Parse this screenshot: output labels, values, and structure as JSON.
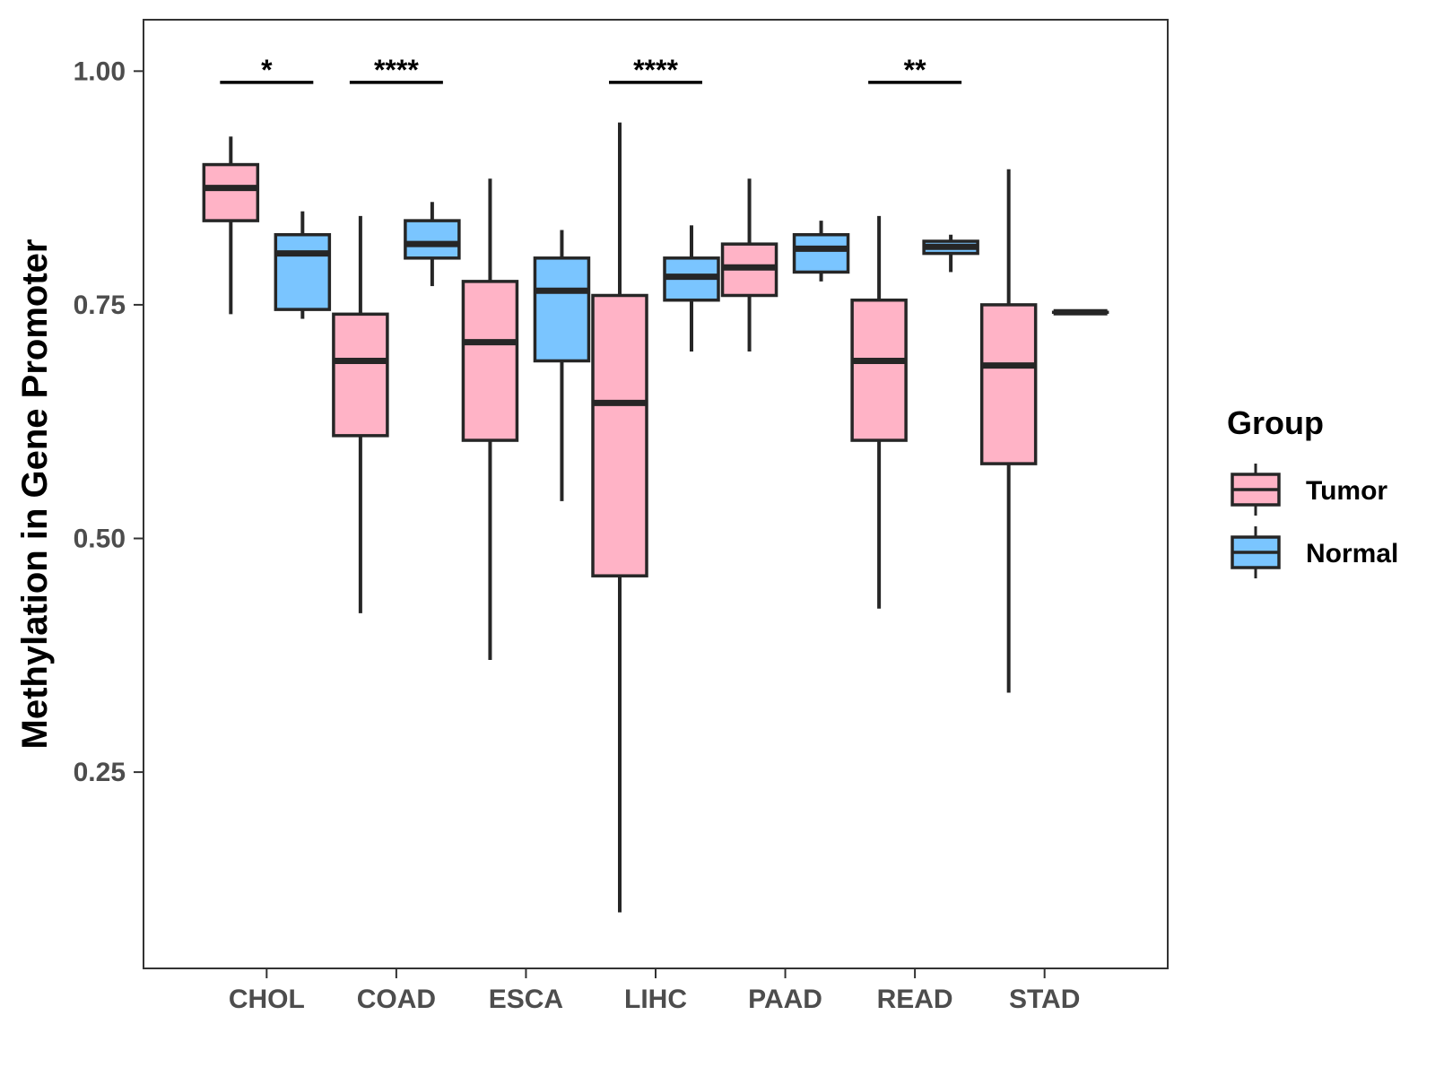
{
  "chart_data": {
    "type": "boxplot",
    "title": "",
    "xlabel": "",
    "ylabel": "Methylation in Gene Promoter",
    "ylim": [
      0.04,
      1.055
    ],
    "yticks": [
      0.25,
      0.5,
      0.75,
      1.0
    ],
    "ytick_labels": [
      "0.25",
      "0.50",
      "0.75",
      "1.00"
    ],
    "grid": false,
    "categories": [
      "CHOL",
      "COAD",
      "ESCA",
      "LIHC",
      "PAAD",
      "READ",
      "STAD"
    ],
    "legend": {
      "title": "Group",
      "placement": "right",
      "entries": [
        {
          "name": "Tumor",
          "color": "#ffb3c6"
        },
        {
          "name": "Normal",
          "color": "#7ac5ff"
        }
      ]
    },
    "series": [
      {
        "name": "Tumor",
        "color": "#ffb3c6",
        "boxes": [
          {
            "category": "CHOL",
            "min": 0.74,
            "q1": 0.84,
            "median": 0.875,
            "q3": 0.9,
            "max": 0.93
          },
          {
            "category": "COAD",
            "min": 0.42,
            "q1": 0.61,
            "median": 0.69,
            "q3": 0.74,
            "max": 0.845
          },
          {
            "category": "ESCA",
            "min": 0.37,
            "q1": 0.605,
            "median": 0.71,
            "q3": 0.775,
            "max": 0.885
          },
          {
            "category": "LIHC",
            "min": 0.1,
            "q1": 0.46,
            "median": 0.645,
            "q3": 0.76,
            "max": 0.945
          },
          {
            "category": "PAAD",
            "min": 0.7,
            "q1": 0.76,
            "median": 0.79,
            "q3": 0.815,
            "max": 0.885
          },
          {
            "category": "READ",
            "min": 0.425,
            "q1": 0.605,
            "median": 0.69,
            "q3": 0.755,
            "max": 0.845
          },
          {
            "category": "STAD",
            "min": 0.335,
            "q1": 0.58,
            "median": 0.685,
            "q3": 0.75,
            "max": 0.895
          }
        ]
      },
      {
        "name": "Normal",
        "color": "#7ac5ff",
        "boxes": [
          {
            "category": "CHOL",
            "min": 0.735,
            "q1": 0.745,
            "median": 0.805,
            "q3": 0.825,
            "max": 0.85
          },
          {
            "category": "COAD",
            "min": 0.77,
            "q1": 0.8,
            "median": 0.815,
            "q3": 0.84,
            "max": 0.86
          },
          {
            "category": "ESCA",
            "min": 0.54,
            "q1": 0.69,
            "median": 0.765,
            "q3": 0.8,
            "max": 0.83
          },
          {
            "category": "LIHC",
            "min": 0.7,
            "q1": 0.755,
            "median": 0.78,
            "q3": 0.8,
            "max": 0.835
          },
          {
            "category": "PAAD",
            "min": 0.775,
            "q1": 0.785,
            "median": 0.81,
            "q3": 0.825,
            "max": 0.84
          },
          {
            "category": "READ",
            "min": 0.785,
            "q1": 0.805,
            "median": 0.812,
            "q3": 0.818,
            "max": 0.825
          },
          {
            "category": "STAD",
            "min": 0.742,
            "q1": 0.742,
            "median": 0.742,
            "q3": 0.742,
            "max": 0.742
          }
        ]
      }
    ],
    "significance": [
      {
        "category": "CHOL",
        "label": "*",
        "y": 0.988
      },
      {
        "category": "COAD",
        "label": "****",
        "y": 0.988
      },
      {
        "category": "LIHC",
        "label": "****",
        "y": 0.988
      },
      {
        "category": "READ",
        "label": "**",
        "y": 0.988
      }
    ]
  }
}
